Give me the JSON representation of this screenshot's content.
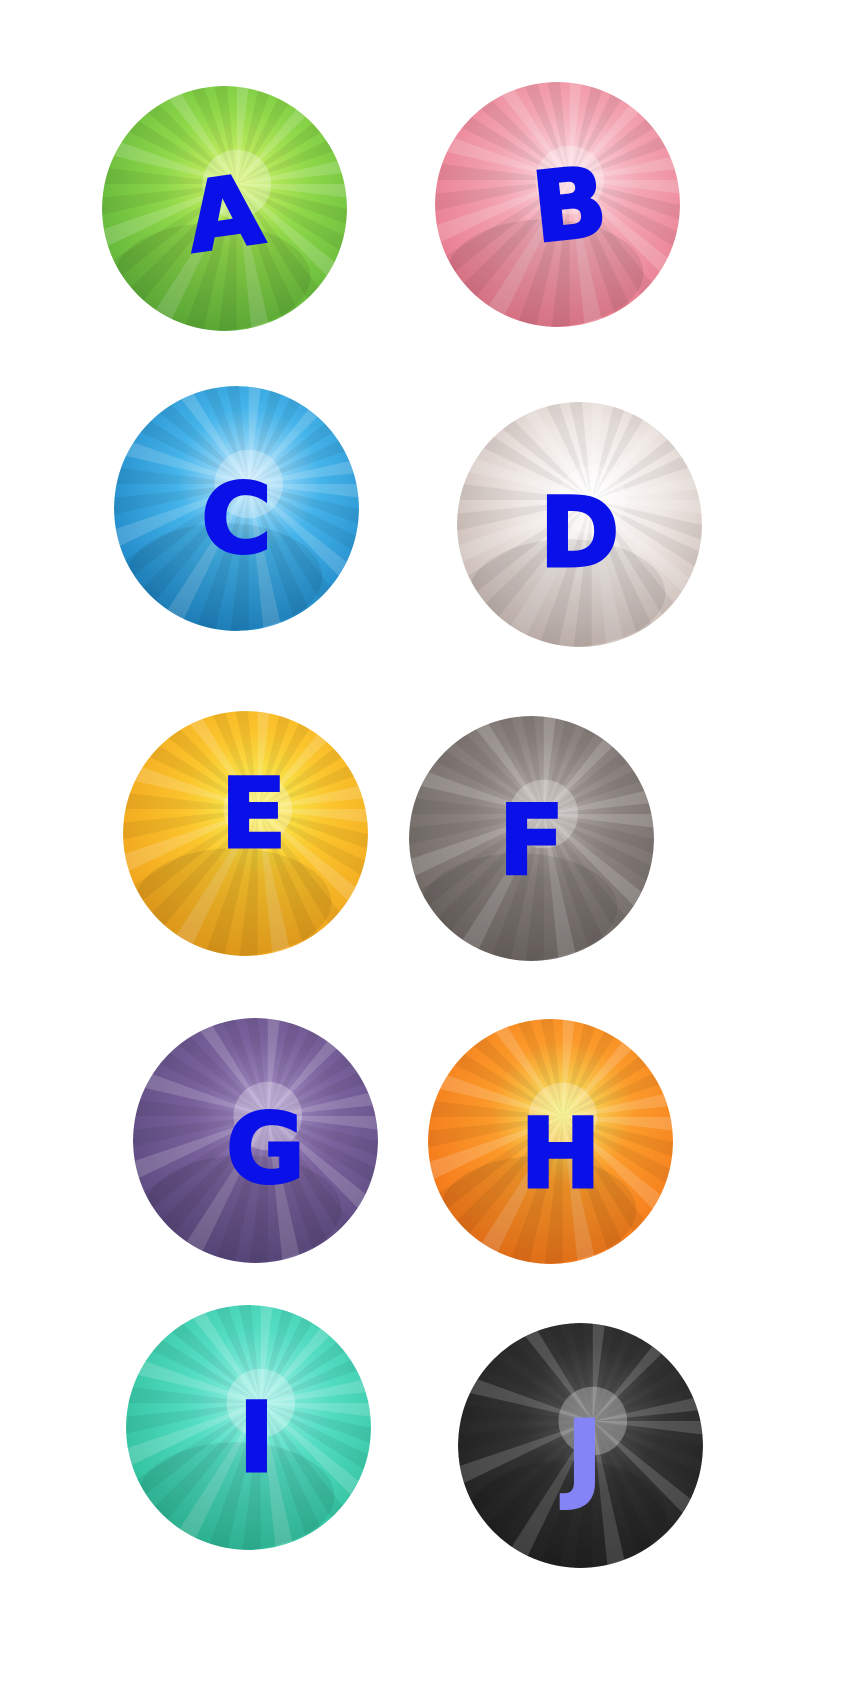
{
  "gems": [
    {
      "id": "a",
      "letter": "A",
      "colors": {
        "light": "#d9f56a",
        "mid": "#8fd84a",
        "dark": "#5fb43a"
      },
      "letter_color": "#0a10e8"
    },
    {
      "id": "b",
      "letter": "B",
      "colors": {
        "light": "#fde0e6",
        "mid": "#f3a4b2",
        "dark": "#e8798d"
      },
      "letter_color": "#0a10e8"
    },
    {
      "id": "c",
      "letter": "C",
      "colors": {
        "light": "#c8ecff",
        "mid": "#45b4ea",
        "dark": "#1e86c6"
      },
      "letter_color": "#0a10e8"
    },
    {
      "id": "d",
      "letter": "D",
      "colors": {
        "light": "#ffffff",
        "mid": "#efe8e4",
        "dark": "#c9b9b3"
      },
      "letter_color": "#0a10e8"
    },
    {
      "id": "e",
      "letter": "E",
      "colors": {
        "light": "#f7f55a",
        "mid": "#fbc52d",
        "dark": "#f0a21c"
      },
      "letter_color": "#0a10e8"
    },
    {
      "id": "f",
      "letter": "F",
      "colors": {
        "light": "#b9b1ad",
        "mid": "#8c8480",
        "dark": "#6f6865"
      },
      "letter_color": "#0a10e8"
    },
    {
      "id": "g",
      "letter": "G",
      "colors": {
        "light": "#a892c8",
        "mid": "#7a629c",
        "dark": "#5c4a80"
      },
      "letter_color": "#0a10e8"
    },
    {
      "id": "h",
      "letter": "H",
      "colors": {
        "light": "#f4f06a",
        "mid": "#fb9a2a",
        "dark": "#f4761a"
      },
      "letter_color": "#0a10e8"
    },
    {
      "id": "i",
      "letter": "I",
      "colors": {
        "light": "#9cf1e8",
        "mid": "#52dcc2",
        "dark": "#2fbf9b"
      },
      "letter_color": "#0a10e8"
    },
    {
      "id": "j",
      "letter": "J",
      "colors": {
        "light": "#5a5a5a",
        "mid": "#333333",
        "dark": "#222222"
      },
      "letter_color": "#8484f6"
    }
  ]
}
